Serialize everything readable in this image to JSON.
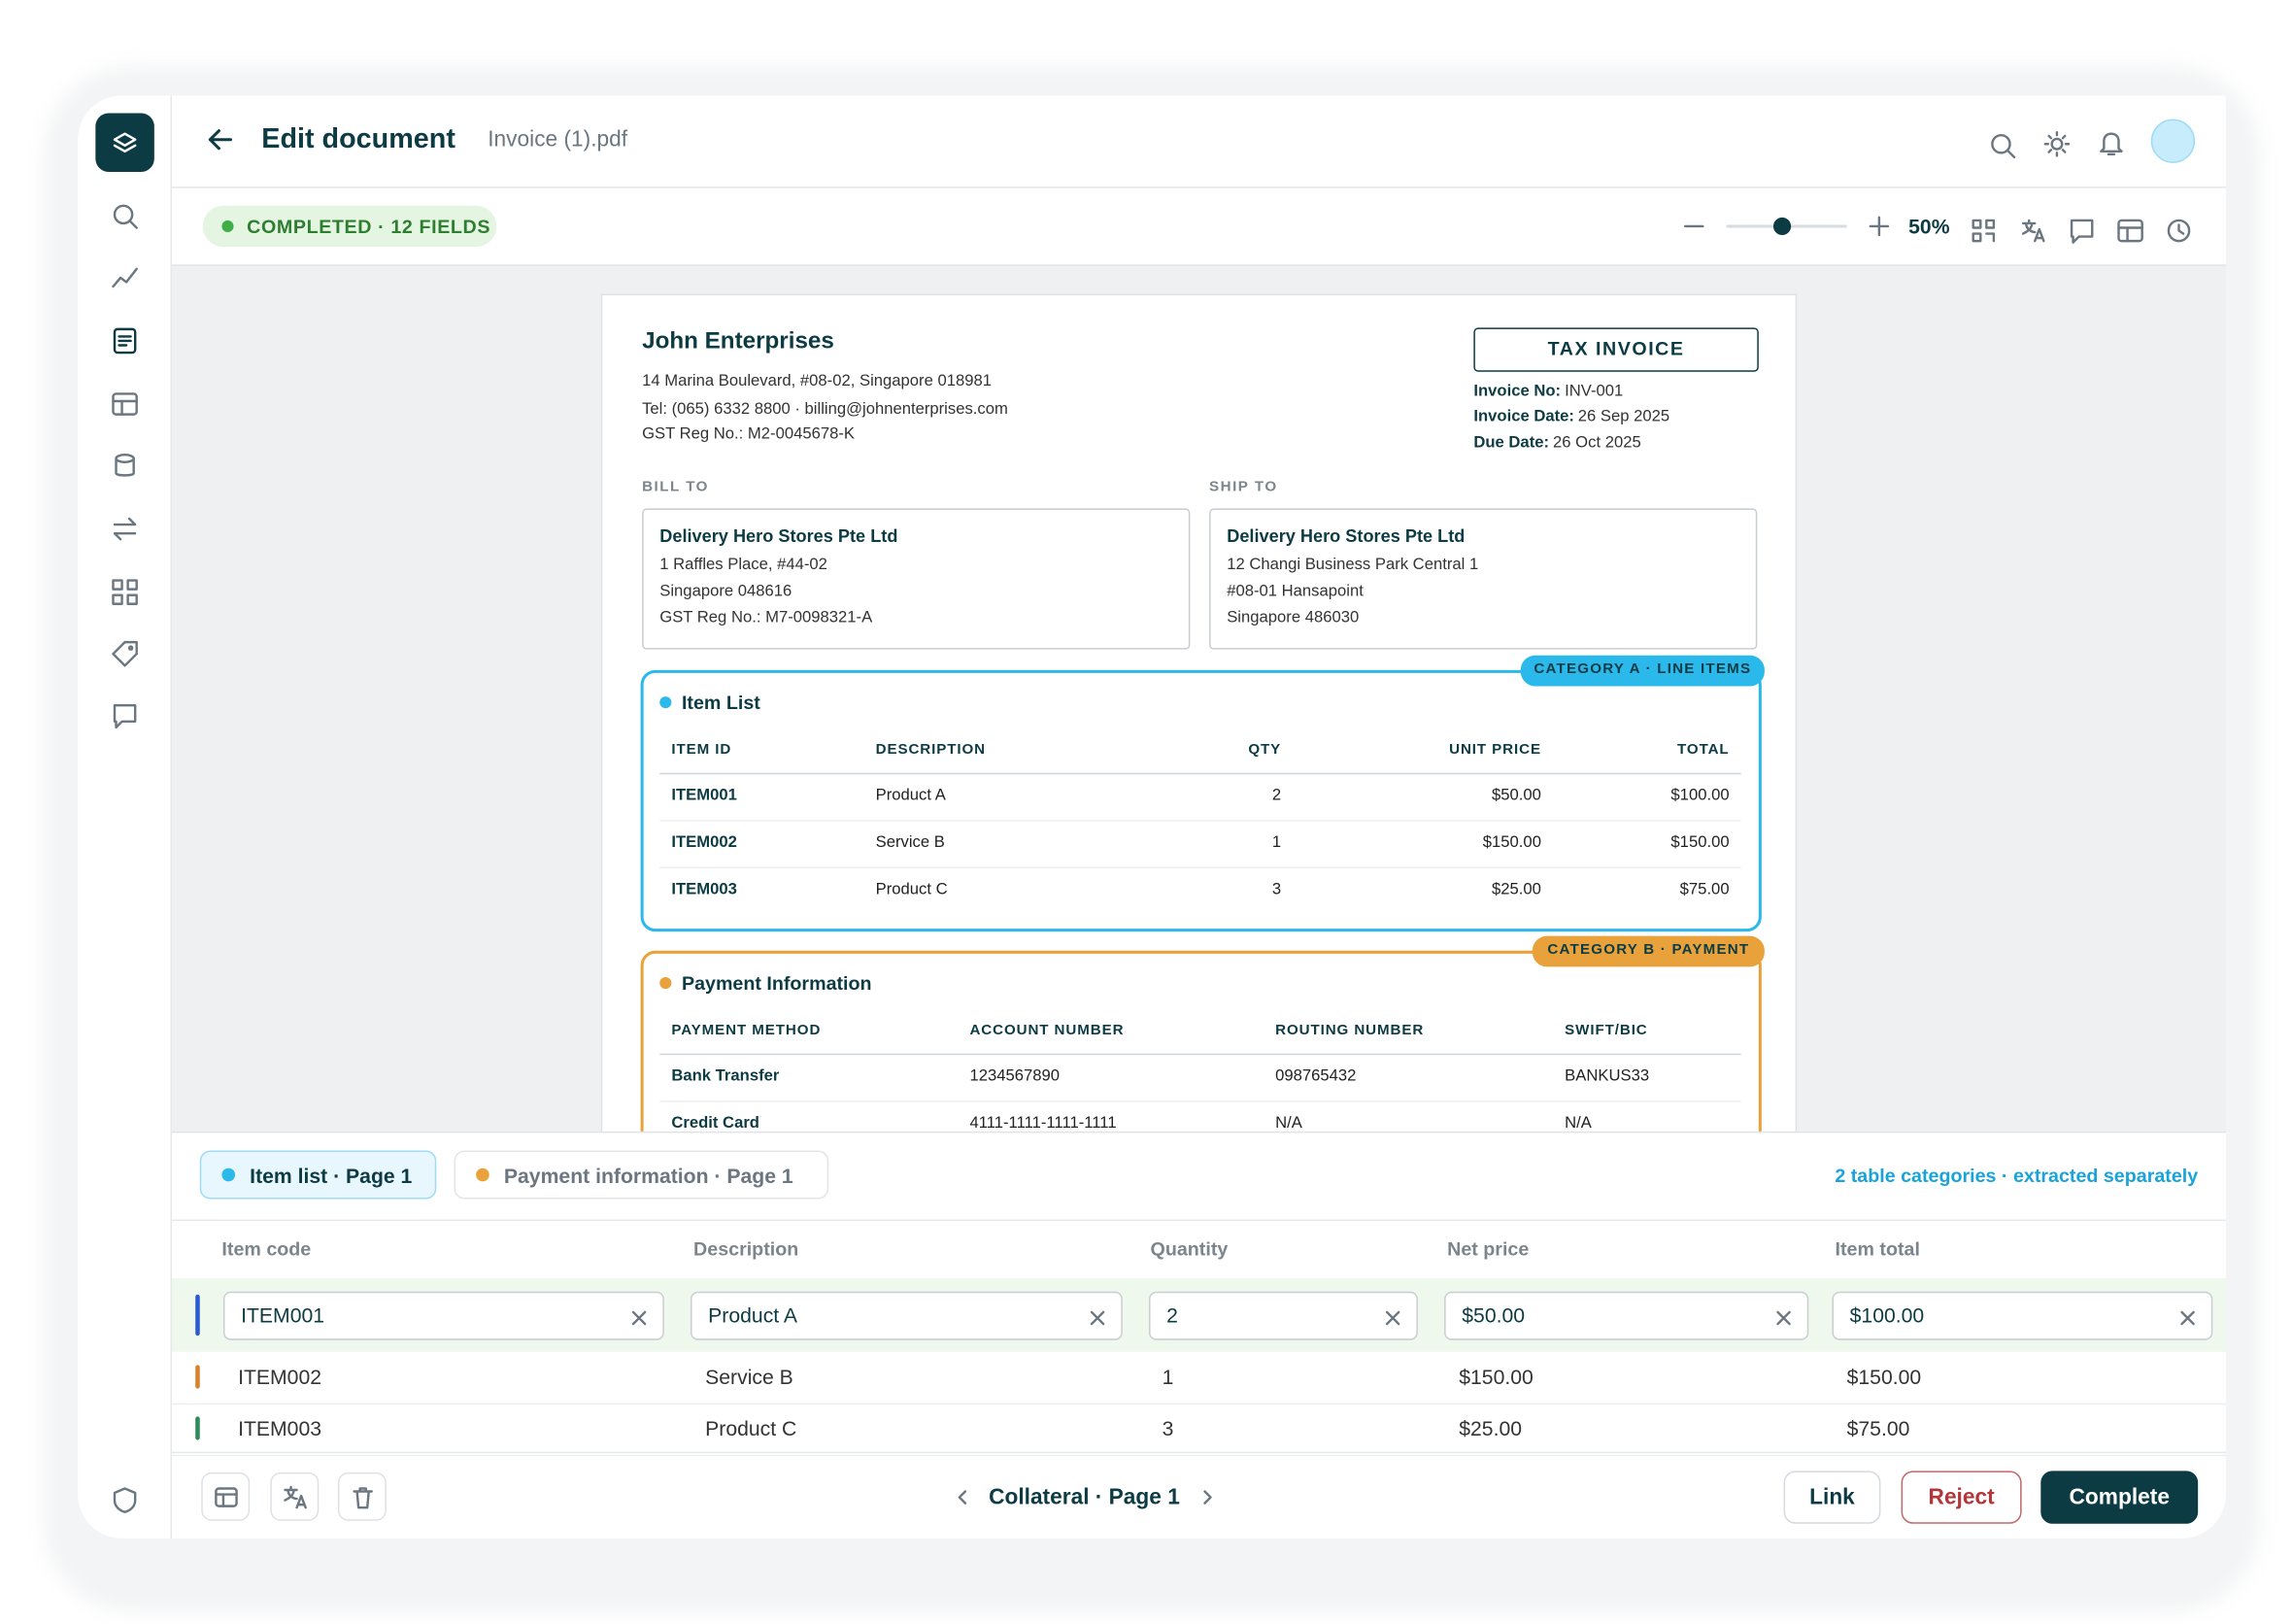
{
  "header": {
    "title": "Edit document",
    "filename": "Invoice (1).pdf"
  },
  "status": "COMPLETED · 12 FIELDS",
  "zoom": "50%",
  "invoice": {
    "company": "John Enterprises",
    "address_lines": [
      "14 Marina Boulevard, #08-02, Singapore 018981",
      "Tel: (065) 6332 8800  ·  billing@johnenterprises.com",
      "GST Reg No.: M2-0045678-K"
    ],
    "doc_type": "TAX INVOICE",
    "meta": [
      {
        "label": "Invoice No:",
        "value": "INV-001"
      },
      {
        "label": "Invoice Date:",
        "value": "26 Sep 2025"
      },
      {
        "label": "Due Date:",
        "value": "26 Oct 2025"
      }
    ],
    "bill_to": {
      "label": "BILL TO",
      "name": "Delivery Hero Stores Pte Ltd",
      "lines": [
        "1 Raffles Place, #44-02",
        "Singapore 048616",
        "GST Reg No.: M7-0098321-A"
      ]
    },
    "ship_to": {
      "label": "SHIP TO",
      "name": "Delivery Hero Stores Pte Ltd",
      "lines": [
        "12 Changi Business Park Central 1",
        "#08-01 Hansapoint",
        "Singapore 486030"
      ]
    },
    "item_section": {
      "badge": "CATEGORY A · LINE ITEMS",
      "title": "Item List",
      "columns": [
        "ITEM ID",
        "DESCRIPTION",
        "QTY",
        "UNIT PRICE",
        "TOTAL"
      ],
      "rows": [
        [
          "ITEM001",
          "Product A",
          "2",
          "$50.00",
          "$100.00"
        ],
        [
          "ITEM002",
          "Service B",
          "1",
          "$150.00",
          "$150.00"
        ],
        [
          "ITEM003",
          "Product C",
          "3",
          "$25.00",
          "$75.00"
        ]
      ]
    },
    "payment_section": {
      "badge": "CATEGORY B · PAYMENT",
      "title": "Payment Information",
      "columns": [
        "PAYMENT METHOD",
        "ACCOUNT NUMBER",
        "ROUTING NUMBER",
        "SWIFT/BIC"
      ],
      "rows": [
        [
          "Bank Transfer",
          "1234567890",
          "098765432",
          "BANKUS33"
        ],
        [
          "Credit Card",
          "4111-1111-1111-1111",
          "N/A",
          "N/A"
        ]
      ]
    }
  },
  "panel": {
    "tabs": [
      "Item list · Page 1",
      "Payment information · Page 1"
    ],
    "note": "2 table categories · extracted separately",
    "columns": [
      "Item code",
      "Description",
      "Quantity",
      "Net price",
      "Item total"
    ],
    "rows": [
      [
        "ITEM001",
        "Product A",
        "2",
        "$50.00",
        "$100.00"
      ],
      [
        "ITEM002",
        "Service B",
        "1",
        "$150.00",
        "$150.00"
      ],
      [
        "ITEM003",
        "Product C",
        "3",
        "$25.00",
        "$75.00"
      ]
    ],
    "pager": "Collateral · Page 1",
    "buttons": [
      "Link",
      "Reject",
      "Complete"
    ]
  }
}
